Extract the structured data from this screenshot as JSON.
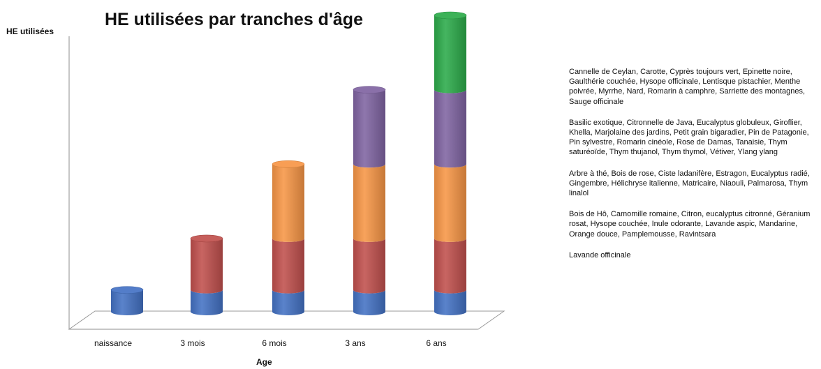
{
  "chart_data": {
    "type": "bar",
    "title": "HE utilisées par tranches d'âge",
    "xlabel": "Age",
    "ylabel": "HE utilisées",
    "categories": [
      "naissance",
      "3 mois",
      "6 mois",
      "3 ans",
      "6 ans"
    ],
    "series": [
      {
        "color": "#4472c4",
        "values": [
          1,
          1,
          1,
          1,
          1
        ]
      },
      {
        "color": "#c0504d",
        "values": [
          0,
          2.35,
          2.35,
          2.35,
          2.35
        ]
      },
      {
        "color": "#f79646",
        "values": [
          0,
          0,
          3.4,
          3.4,
          3.4
        ]
      },
      {
        "color": "#8064a2",
        "values": [
          0,
          0,
          0,
          3.4,
          3.4
        ]
      },
      {
        "color": "#2cab4a",
        "values": [
          0,
          0,
          0,
          0,
          3.4
        ]
      }
    ],
    "ylim": [
      0,
      13.55
    ],
    "stacked": true,
    "grid": false,
    "legend_placement": "right"
  },
  "legend_texts": [
    "Cannelle de Ceylan, Carotte, Cyprès toujours vert, Epinette noire, Gaulthérie couchée, Hysope officinale, Lentisque pistachier, Menthe poivrée, Myrrhe, Nard, Romarin à camphre, Sarriette des montagnes, Sauge officinale",
    "Basilic exotique, Citronnelle de Java, Eucalyptus globuleux, Giroflier, Khella, Marjolaine des jardins, Petit grain bigaradier, Pin de Patagonie, Pin sylvestre, Romarin cinéole, Rose de Damas, Tanaisie, Thym saturéoïde, Thym thujanol, Thym thymol, Vétiver, Ylang ylang",
    "Arbre à thé, Bois de rose, Ciste ladanifère, Estragon, Eucalyptus radié, Gingembre, Hélichryse italienne, Matricaire, Niaouli, Palmarosa, Thym linalol",
    "Bois de Hô, Camomille romaine, Citron, eucalyptus citronné, Géranium rosat, Hysope couchée, Inule odorante, Lavande aspic, Mandarine, Orange douce, Pamplemousse, Ravintsara",
    "Lavande officinale"
  ]
}
